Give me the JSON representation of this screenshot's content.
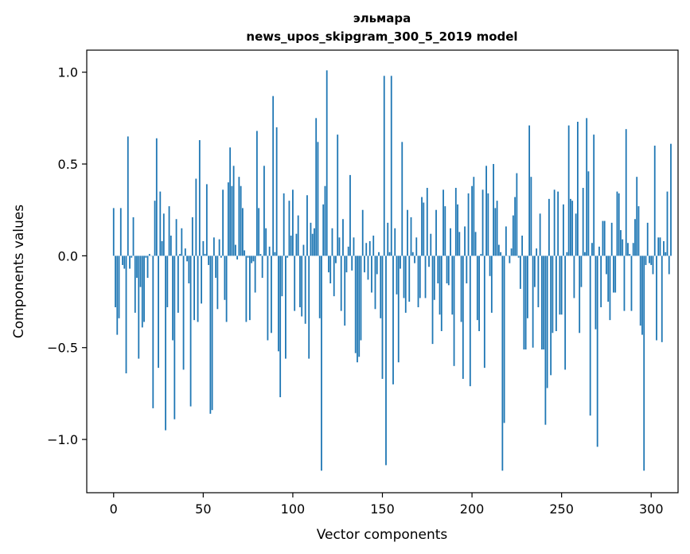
{
  "chart_data": {
    "type": "bar",
    "title": "эльмара",
    "subtitle": "news_upos_skipgram_300_5_2019 model",
    "xlabel": "Vector components",
    "ylabel": "Components values",
    "xlim": [
      -15,
      315
    ],
    "ylim": [
      -1.29,
      1.12
    ],
    "xticks": [
      0,
      50,
      100,
      150,
      200,
      250,
      300
    ],
    "yticks": [
      -1.0,
      -0.5,
      0.0,
      0.5,
      1.0
    ],
    "xtick_labels": [
      "0",
      "50",
      "100",
      "150",
      "200",
      "250",
      "300"
    ],
    "ytick_labels": [
      "−1.0",
      "−0.5",
      "0.0",
      "0.5",
      "1.0"
    ],
    "grid": false,
    "legend": "none",
    "bar_color": "#1f77b4",
    "values": [
      0.26,
      -0.28,
      -0.43,
      -0.34,
      0.26,
      -0.05,
      -0.07,
      -0.64,
      0.65,
      -0.07,
      -0.01,
      0.21,
      -0.31,
      -0.12,
      -0.56,
      -0.17,
      -0.39,
      -0.36,
      -0.01,
      -0.12,
      0.01,
      0.0,
      -0.83,
      0.3,
      0.64,
      -0.61,
      0.35,
      0.08,
      0.23,
      -0.95,
      -0.28,
      0.27,
      0.11,
      -0.46,
      -0.89,
      0.2,
      -0.31,
      0.01,
      0.15,
      -0.62,
      0.04,
      -0.03,
      -0.15,
      -0.82,
      0.21,
      -0.35,
      0.42,
      -0.36,
      0.63,
      -0.26,
      0.08,
      0.01,
      0.39,
      -0.05,
      -0.86,
      -0.84,
      0.1,
      -0.12,
      -0.29,
      0.09,
      -0.01,
      0.36,
      -0.24,
      -0.36,
      0.4,
      0.59,
      0.38,
      0.49,
      0.06,
      -0.02,
      0.43,
      0.38,
      0.26,
      0.03,
      -0.36,
      -0.01,
      -0.35,
      -0.04,
      -0.03,
      -0.2,
      0.68,
      0.26,
      0.01,
      -0.12,
      0.49,
      0.15,
      -0.46,
      0.05,
      -0.42,
      0.87,
      0.02,
      0.7,
      -0.52,
      -0.77,
      -0.22,
      0.34,
      -0.56,
      -0.01,
      0.3,
      0.11,
      0.36,
      -0.3,
      0.12,
      0.22,
      -0.28,
      -0.33,
      0.06,
      -0.37,
      0.33,
      -0.56,
      0.18,
      0.12,
      0.15,
      0.75,
      0.62,
      -0.34,
      -1.17,
      0.28,
      0.38,
      1.01,
      -0.09,
      -0.15,
      0.15,
      -0.22,
      -0.04,
      0.66,
      0.1,
      -0.3,
      0.2,
      -0.38,
      -0.09,
      0.05,
      0.44,
      -0.08,
      0.1,
      -0.53,
      -0.58,
      -0.55,
      -0.46,
      0.25,
      -0.09,
      0.07,
      -0.13,
      0.08,
      -0.2,
      0.11,
      -0.29,
      -0.1,
      0.02,
      -0.34,
      -0.67,
      0.98,
      -1.14,
      0.18,
      0.02,
      0.98,
      -0.7,
      0.15,
      -0.21,
      -0.58,
      -0.07,
      0.62,
      -0.23,
      -0.31,
      0.25,
      -0.25,
      0.21,
      0.02,
      -0.04,
      0.1,
      -0.28,
      -0.23,
      0.32,
      0.29,
      -0.23,
      0.37,
      -0.06,
      0.12,
      -0.48,
      -0.24,
      0.25,
      -0.15,
      -0.32,
      -0.41,
      0.36,
      0.27,
      -0.15,
      -0.16,
      0.15,
      -0.32,
      -0.6,
      0.37,
      0.28,
      0.13,
      -0.36,
      -0.67,
      0.16,
      -0.15,
      0.34,
      -0.71,
      0.38,
      0.43,
      0.13,
      -0.35,
      -0.41,
      0.01,
      0.36,
      -0.61,
      0.49,
      0.34,
      -0.11,
      -0.31,
      0.5,
      0.26,
      0.3,
      0.06,
      0.02,
      -1.17,
      -0.91,
      0.16,
      0.0,
      -0.04,
      0.04,
      0.22,
      0.32,
      0.45,
      -0.01,
      -0.18,
      0.11,
      -0.51,
      -0.51,
      -0.34,
      0.71,
      0.43,
      -0.5,
      -0.17,
      0.04,
      -0.28,
      0.23,
      -0.51,
      -0.51,
      -0.92,
      -0.72,
      0.31,
      -0.65,
      -0.42,
      0.36,
      -0.41,
      0.35,
      -0.32,
      -0.32,
      0.28,
      -0.62,
      0.02,
      0.71,
      0.31,
      0.3,
      -0.23,
      0.23,
      0.73,
      -0.42,
      -0.17,
      0.37,
      0.02,
      0.75,
      0.46,
      -0.87,
      0.07,
      0.66,
      -0.4,
      -1.04,
      0.05,
      -0.28,
      0.19,
      0.19,
      -0.1,
      -0.25,
      -0.35,
      0.18,
      -0.2,
      -0.2,
      0.35,
      0.34,
      0.14,
      0.09,
      -0.3,
      0.69,
      0.07,
      0.01,
      -0.3,
      0.07,
      0.2,
      0.43,
      0.27,
      -0.38,
      -0.43,
      -1.17,
      -0.05,
      0.18,
      -0.04,
      -0.05,
      -0.1,
      0.6,
      -0.46,
      0.1,
      0.1,
      -0.47,
      0.08,
      0.02,
      0.35,
      -0.1,
      0.61
    ]
  }
}
